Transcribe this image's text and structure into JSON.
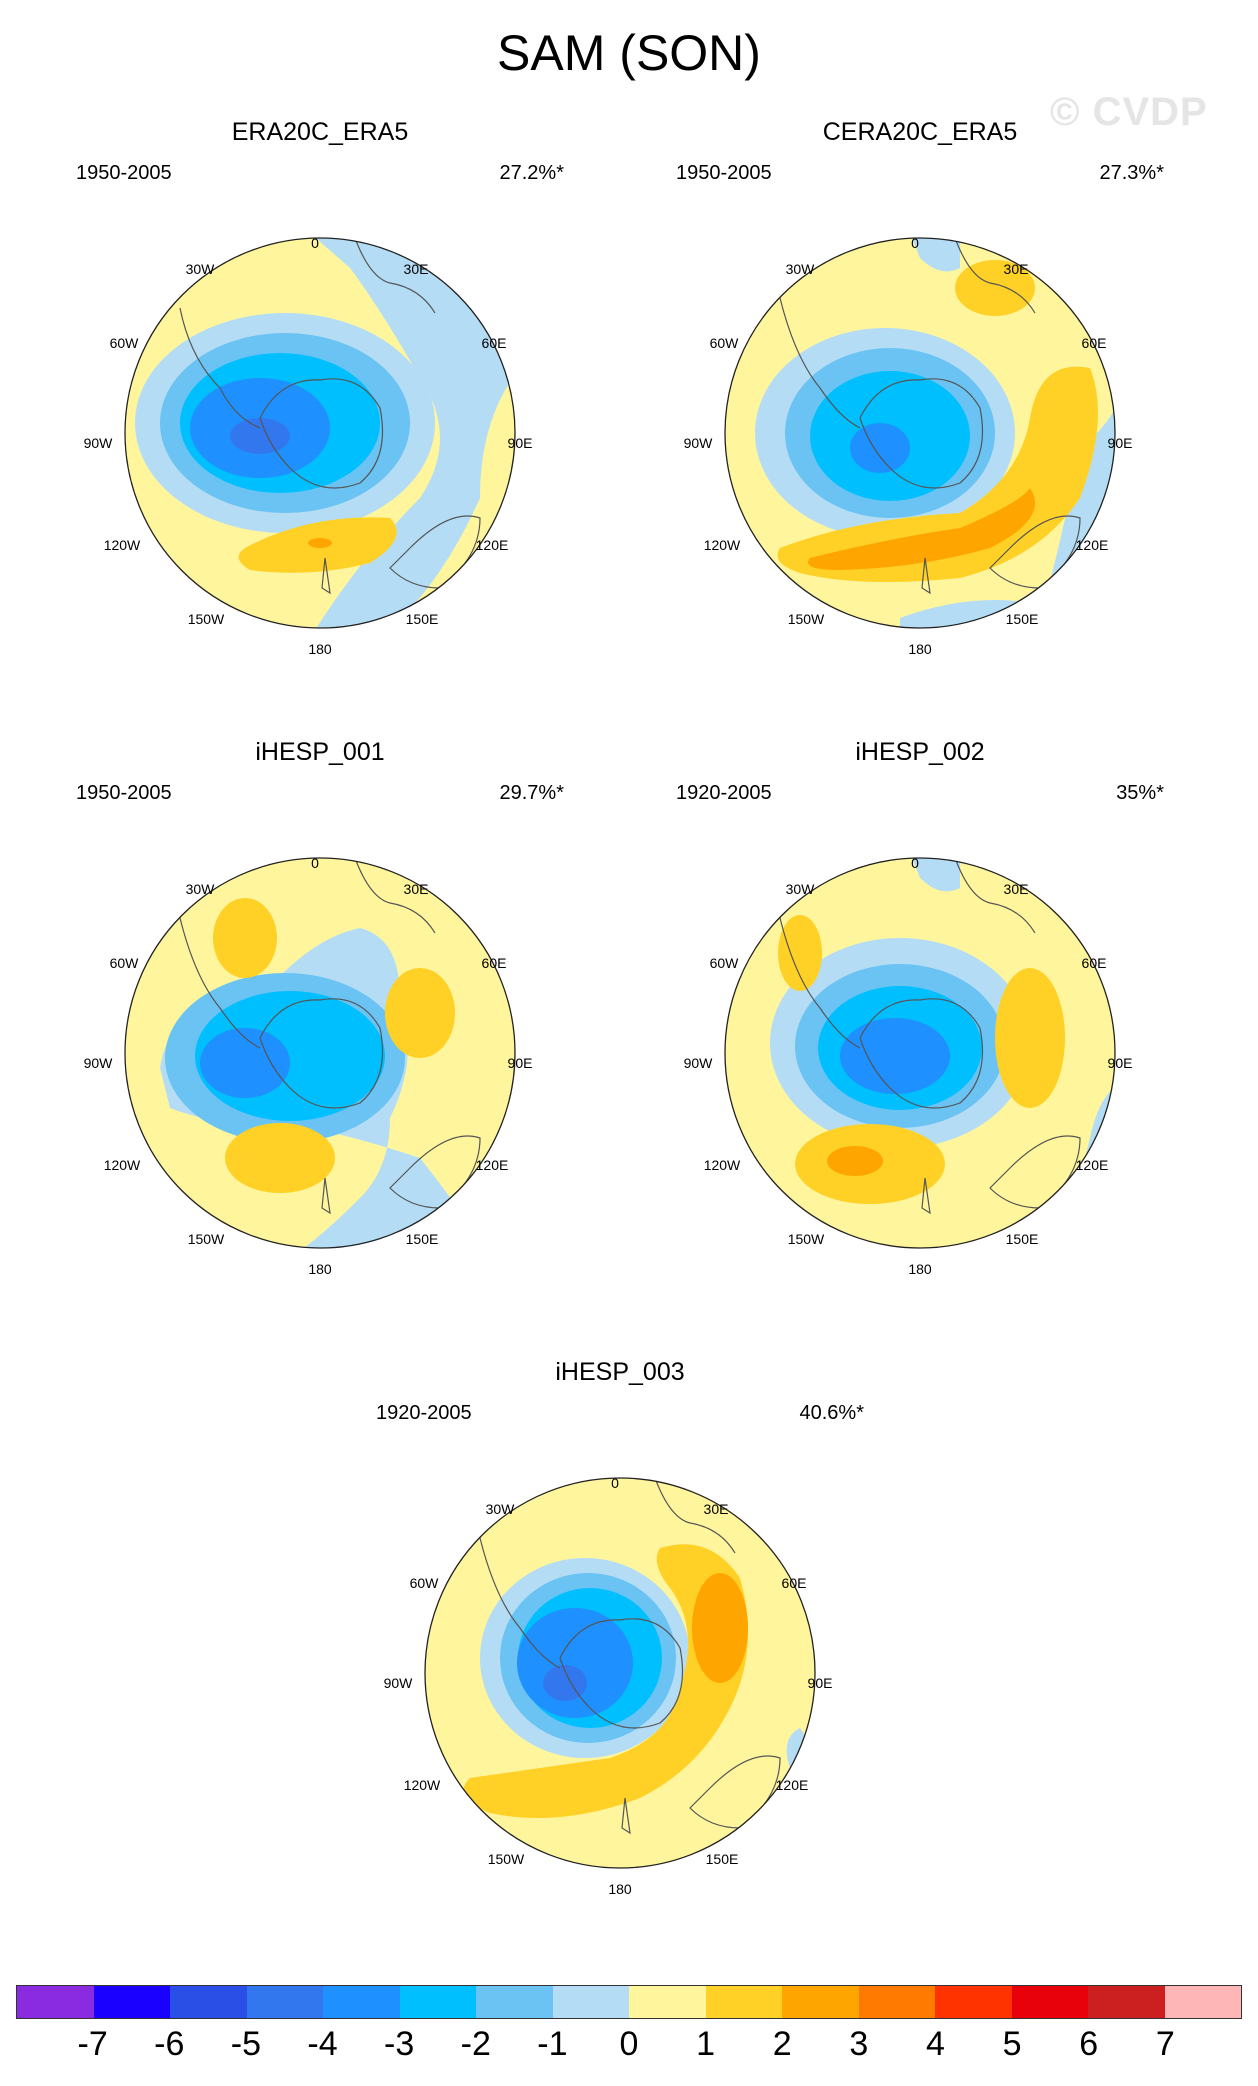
{
  "title": "SAM (SON)",
  "watermark": "© CVDP",
  "panels": [
    {
      "name": "ERA20C_ERA5",
      "period": "1950-2005",
      "variance": "27.2%*"
    },
    {
      "name": "CERA20C_ERA5",
      "period": "1950-2005",
      "variance": "27.3%*"
    },
    {
      "name": "iHESP_001",
      "period": "1950-2005",
      "variance": "29.7%*"
    },
    {
      "name": "iHESP_002",
      "period": "1920-2005",
      "variance": "35%*"
    },
    {
      "name": "iHESP_003",
      "period": "1920-2005",
      "variance": "40.6%*"
    }
  ],
  "lon_labels": {
    "top": "0",
    "bottom": "180",
    "r30": "30E",
    "r60": "60E",
    "r90": "90E",
    "r120": "120E",
    "r150": "150E",
    "l30": "30W",
    "l60": "60W",
    "l90": "90W",
    "l120": "120W",
    "l150": "150W"
  },
  "colorbar": {
    "labels": [
      "-7",
      "-6",
      "-5",
      "-4",
      "-3",
      "-2",
      "-1",
      "0",
      "1",
      "2",
      "3",
      "4",
      "5",
      "6",
      "7"
    ],
    "colors": [
      "#8a2be2",
      "#1a00ff",
      "#2a4fe6",
      "#3377ee",
      "#1e90ff",
      "#00bfff",
      "#6ac3f2",
      "#b4ddf5",
      "#fff59d",
      "#ffd127",
      "#ffa500",
      "#ff7a00",
      "#ff3300",
      "#e8000b",
      "#cc1f1f",
      "#ffb6b6"
    ]
  },
  "colors": {
    "land": "#fff59d",
    "neg1": "#b4ddf5",
    "neg2": "#6ac3f2",
    "neg3": "#00bfff",
    "neg4": "#1e90ff",
    "neg5": "#3377ee",
    "neg6": "#2a4fe6",
    "pos1": "#ffd127",
    "pos2": "#ffa500"
  }
}
